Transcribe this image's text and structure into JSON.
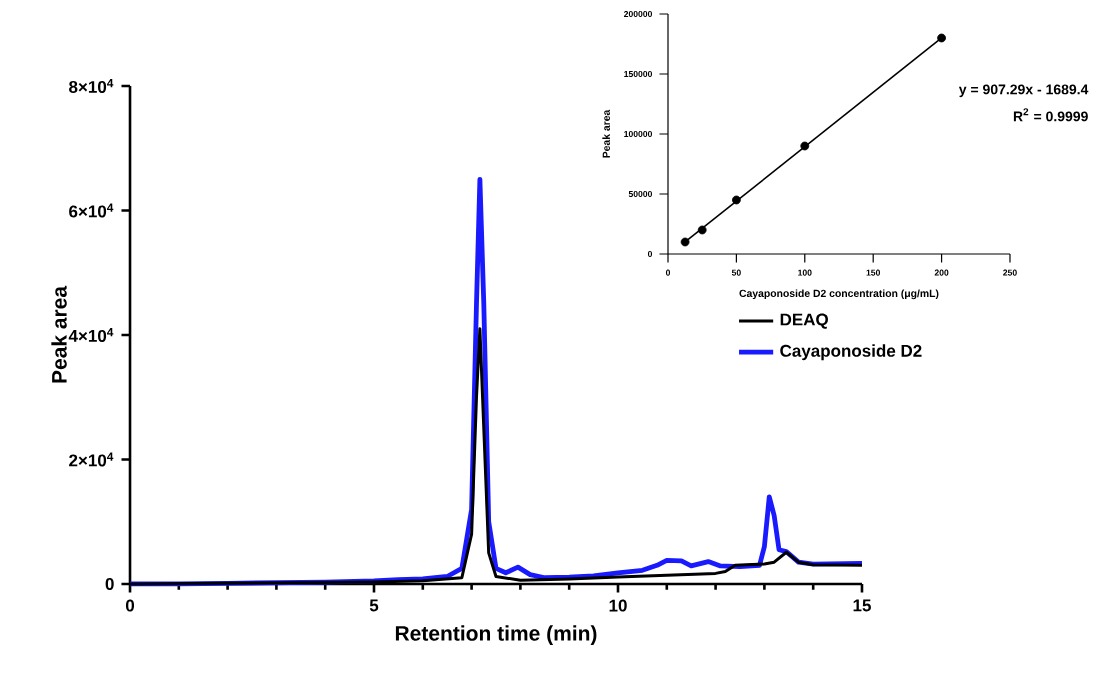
{
  "chart_data": [
    {
      "type": "line",
      "xlabel": "Retention time (min)",
      "ylabel": "Peak area",
      "xlim": [
        0,
        15
      ],
      "ylim": [
        0,
        80000
      ],
      "xticks": [
        0,
        5,
        10,
        15
      ],
      "yticks": [
        0,
        {
          "value": 20000,
          "label": "2×10$^{4}$"
        },
        {
          "value": 40000,
          "label": "4×10$^{4}$"
        },
        {
          "value": 60000,
          "label": "6×10$^{4}$"
        },
        {
          "value": 80000,
          "label": "8×10$^{4}$"
        }
      ],
      "legend": "right",
      "grid": false,
      "line_style": "solid",
      "series": [
        {
          "name": "DEAQ",
          "color": "#000000",
          "x": [
            0,
            5,
            6,
            6.8,
            7.0,
            7.1,
            7.17,
            7.25,
            7.35,
            7.5,
            8,
            9,
            10,
            11,
            12,
            12.2,
            12.4,
            13,
            13.2,
            13.45,
            13.7,
            14,
            15
          ],
          "values": [
            0,
            300,
            500,
            1000,
            8000,
            30000,
            41000,
            25000,
            5000,
            1200,
            600,
            800,
            1100,
            1400,
            1700,
            2000,
            3000,
            3200,
            3500,
            5100,
            3500,
            3100,
            3000
          ]
        },
        {
          "name": "Cayaponoside  D2",
          "color": "#1a1aff",
          "x": [
            0,
            1,
            2,
            3,
            4,
            5,
            5.5,
            6,
            6.5,
            6.8,
            7.0,
            7.1,
            7.17,
            7.25,
            7.35,
            7.5,
            7.7,
            7.95,
            8.2,
            8.5,
            9,
            9.5,
            10,
            10.5,
            10.8,
            11.0,
            11.3,
            11.5,
            11.85,
            12.1,
            12.5,
            12.9,
            13.0,
            13.1,
            13.2,
            13.3,
            13.45,
            13.7,
            14,
            15
          ],
          "values": [
            0,
            0,
            100,
            200,
            300,
            500,
            700,
            800,
            1200,
            2500,
            12000,
            45000,
            65000,
            45000,
            10000,
            2500,
            1800,
            2700,
            1500,
            1000,
            1100,
            1300,
            1800,
            2200,
            3000,
            3800,
            3700,
            2900,
            3600,
            2900,
            2800,
            3000,
            6000,
            14000,
            11000,
            5500,
            5200,
            3500,
            3200,
            3300
          ]
        }
      ]
    },
    {
      "type": "scatter",
      "xlabel": "Cayaponoside D2 concentration (μg/mL)",
      "ylabel": "Peak area",
      "xlim": [
        0,
        250
      ],
      "ylim": [
        0,
        200000
      ],
      "xticks": [
        0,
        50,
        100,
        150,
        200,
        250
      ],
      "yticks": [
        0,
        50000,
        100000,
        150000,
        200000
      ],
      "grid": false,
      "legend": false,
      "annotations": [
        "y = 907.29x - 1689.4",
        "R$^{2}$ = 0.9999"
      ],
      "series": [
        {
          "type": "scatter",
          "marker": "circle",
          "color": "#000000",
          "x": [
            12.5,
            25,
            50,
            100,
            200
          ],
          "values": [
            10000,
            20000,
            45000,
            90000,
            180000
          ]
        },
        {
          "type": "line",
          "marker": "none",
          "color": "#000000",
          "x": [
            12.5,
            200
          ],
          "values": [
            10000,
            180000
          ]
        }
      ]
    }
  ]
}
